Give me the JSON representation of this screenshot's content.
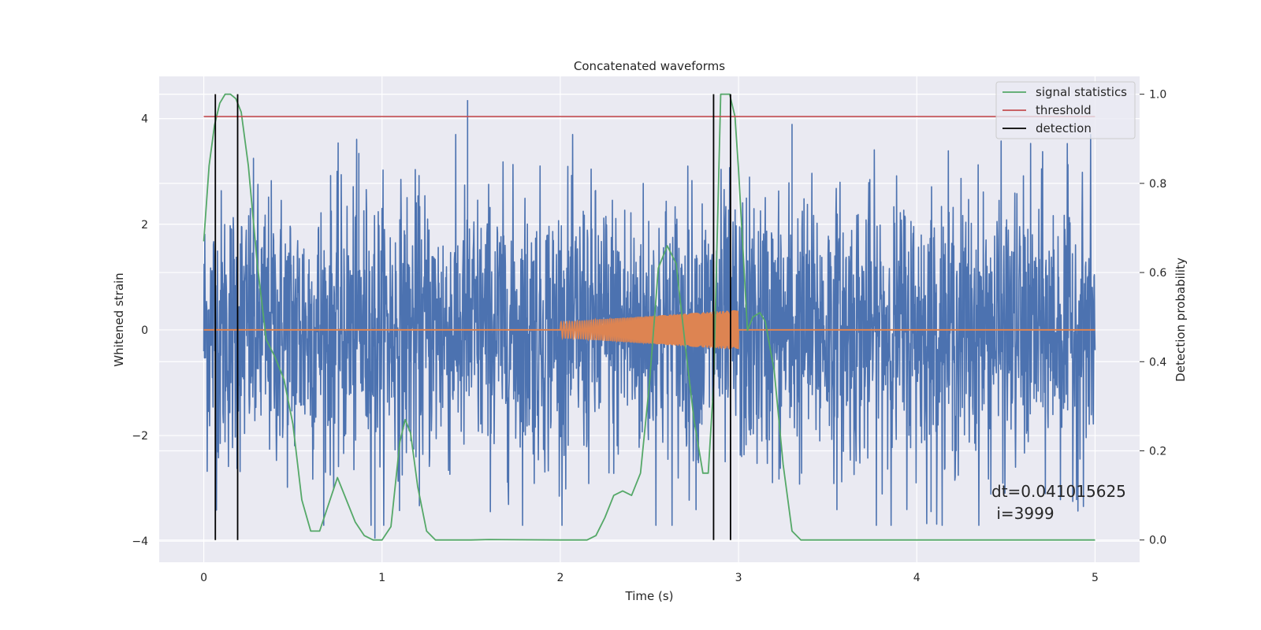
{
  "chart_data": {
    "type": "line",
    "title": "Concatenated waveforms",
    "xlabel": "Time (s)",
    "ylabel": "Whitened strain",
    "ylabel_right": "Detection probability",
    "xlim": [
      -0.25,
      5.25
    ],
    "ylim": [
      -4.4,
      4.8
    ],
    "ylim_right": [
      -0.05,
      1.04
    ],
    "x_ticks": [
      0,
      1,
      2,
      3,
      4,
      5
    ],
    "x_tick_labels": [
      "0",
      "1",
      "2",
      "3",
      "4",
      "5"
    ],
    "y_ticks": [
      -4,
      -2,
      0,
      2,
      4
    ],
    "y_tick_labels": [
      "−4",
      "−2",
      "0",
      "2",
      "4"
    ],
    "y_right_ticks": [
      0.0,
      0.2,
      0.4,
      0.6,
      0.8,
      1.0
    ],
    "y_right_tick_labels": [
      "0.0",
      "0.2",
      "0.4",
      "0.6",
      "0.8",
      "1.0"
    ],
    "grid": true,
    "legend_position": "top-right",
    "series": [
      {
        "name": "",
        "kind": "noisy strain",
        "axis": "left",
        "color": "#4c72b0",
        "x_range": [
          0,
          5
        ],
        "typical_amplitude": 1.3,
        "peak_values": [
          {
            "x": 1.48,
            "y": 4.35
          },
          {
            "x": 0.96,
            "y": -3.95
          },
          {
            "x": 3.3,
            "y": 3.9
          },
          {
            "x": 0.87,
            "y": 3.35
          },
          {
            "x": 4.08,
            "y": -3.45
          }
        ]
      },
      {
        "name": "",
        "kind": "injected chirp",
        "axis": "left",
        "color": "#dd8452",
        "x_range": [
          0,
          5
        ],
        "chirp_x_range": [
          2.0,
          3.0
        ],
        "chirp_amplitude_start": 0.15,
        "chirp_amplitude_end": 0.38
      },
      {
        "name": "signal statistics",
        "axis": "right",
        "color": "#55a868",
        "x": [
          0,
          0.03,
          0.06,
          0.09,
          0.12,
          0.15,
          0.18,
          0.21,
          0.25,
          0.3,
          0.35,
          0.4,
          0.45,
          0.5,
          0.55,
          0.6,
          0.65,
          0.7,
          0.75,
          0.8,
          0.85,
          0.9,
          0.95,
          1.0,
          1.05,
          1.1,
          1.13,
          1.16,
          1.2,
          1.25,
          1.3,
          1.5,
          1.6,
          2.0,
          2.15,
          2.2,
          2.25,
          2.3,
          2.35,
          2.4,
          2.45,
          2.5,
          2.55,
          2.6,
          2.65,
          2.7,
          2.75,
          2.8,
          2.83,
          2.86,
          2.9,
          2.95,
          2.98,
          3.0,
          3.05,
          3.08,
          3.12,
          3.15,
          3.2,
          3.25,
          3.3,
          3.35,
          3.5,
          5.0
        ],
        "y": [
          0.67,
          0.84,
          0.93,
          0.98,
          1.0,
          1.0,
          0.99,
          0.96,
          0.84,
          0.62,
          0.45,
          0.41,
          0.36,
          0.26,
          0.09,
          0.02,
          0.02,
          0.08,
          0.14,
          0.09,
          0.04,
          0.01,
          0.0,
          0.0,
          0.03,
          0.22,
          0.27,
          0.24,
          0.12,
          0.02,
          0.0,
          0.0,
          0.001,
          0.0,
          0.0,
          0.01,
          0.05,
          0.1,
          0.11,
          0.1,
          0.15,
          0.35,
          0.61,
          0.66,
          0.62,
          0.44,
          0.27,
          0.15,
          0.15,
          0.35,
          1.0,
          1.0,
          0.95,
          0.83,
          0.47,
          0.5,
          0.51,
          0.49,
          0.38,
          0.17,
          0.02,
          0.0,
          0.0,
          0.0
        ]
      },
      {
        "name": "threshold",
        "axis": "right",
        "color": "#c44e52",
        "x": [
          0,
          5
        ],
        "y": [
          0.95,
          0.95
        ]
      }
    ],
    "detections": {
      "name": "detection",
      "color": "#000000",
      "x": [
        0.065,
        0.19,
        2.86,
        2.955
      ]
    },
    "annotation": {
      "line1": "dt=0.041015625",
      "line2": " i=3999"
    },
    "legend": [
      {
        "label": "signal statistics",
        "color": "#55a868"
      },
      {
        "label": "threshold",
        "color": "#c44e52"
      },
      {
        "label": "detection",
        "color": "#000000"
      }
    ]
  }
}
